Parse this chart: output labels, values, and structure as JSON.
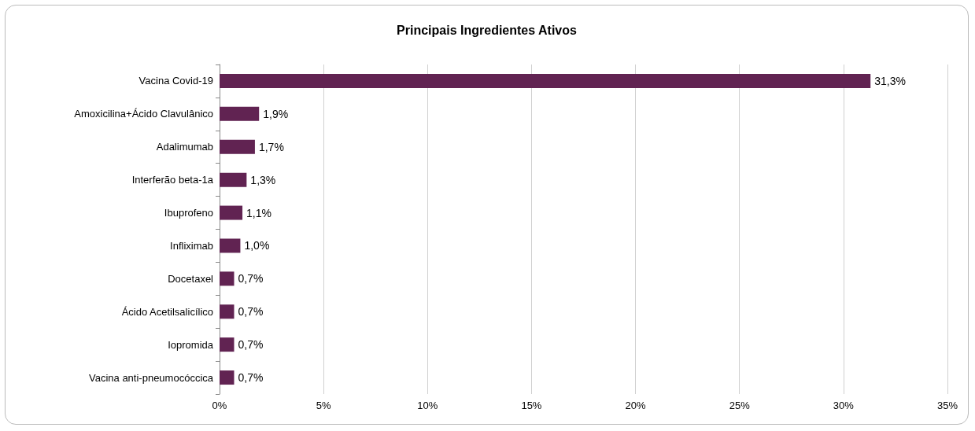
{
  "chart_data": {
    "type": "bar",
    "orientation": "horizontal",
    "title": "Principais Ingredientes Ativos",
    "categories": [
      "Vacina Covid-19",
      "Amoxicilina+Ácido Clavulânico",
      "Adalimumab",
      "Interferão beta-1a",
      "Ibuprofeno",
      "Infliximab",
      "Docetaxel",
      "Ácido Acetilsalicílico",
      "Iopromida",
      "Vacina anti-pneumocóccica"
    ],
    "values": [
      31.3,
      1.9,
      1.7,
      1.3,
      1.1,
      1.0,
      0.7,
      0.7,
      0.7,
      0.7
    ],
    "value_labels": [
      "31,3%",
      "1,9%",
      "1,7%",
      "1,3%",
      "1,1%",
      "1,0%",
      "0,7%",
      "0,7%",
      "0,7%",
      "0,7%"
    ],
    "color": "#612352",
    "xlim": [
      0,
      35
    ],
    "xticks": [
      {
        "value": 0,
        "label": "0%"
      },
      {
        "value": 5,
        "label": "5%"
      },
      {
        "value": 10,
        "label": "10%"
      },
      {
        "value": 15,
        "label": "15%"
      },
      {
        "value": 20,
        "label": "20%"
      },
      {
        "value": 25,
        "label": "25%"
      },
      {
        "value": 30,
        "label": "30%"
      },
      {
        "value": 35,
        "label": "35%"
      }
    ],
    "grid": "x"
  }
}
